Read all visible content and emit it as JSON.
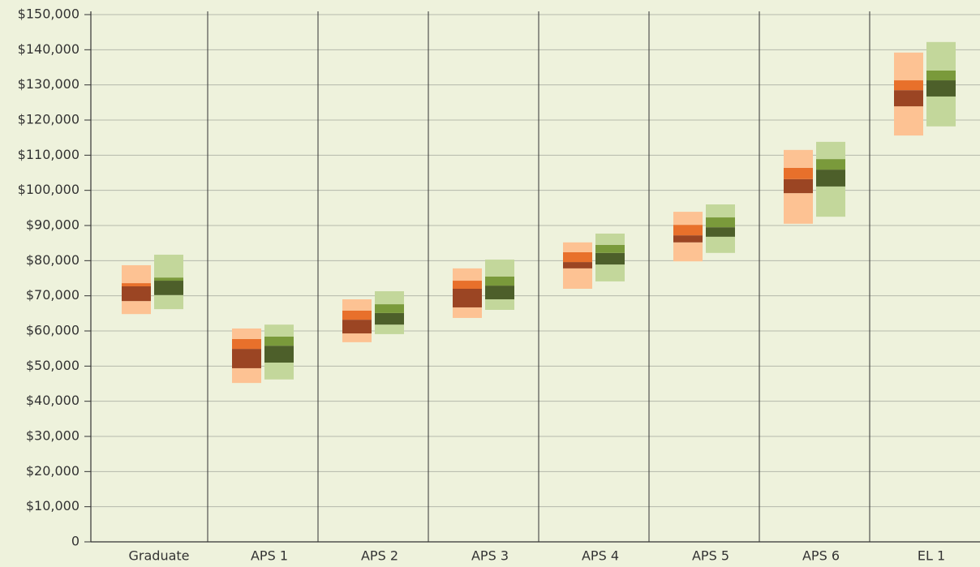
{
  "chart_data": {
    "type": "band",
    "categories": [
      "Graduate",
      "APS 1",
      "APS 2",
      "APS 3",
      "APS 4",
      "APS 5",
      "APS 6",
      "EL 1"
    ],
    "series": [
      {
        "colors": [
          "#fdc293",
          "#9b4523",
          "#e8702b",
          "#fdc293"
        ],
        "p10": [
          64800,
          45200,
          56800,
          63700,
          72000,
          79800,
          90500,
          115600
        ],
        "p25": [
          68500,
          49400,
          59300,
          66700,
          77800,
          85200,
          99200,
          123900
        ],
        "p50": [
          72700,
          54900,
          63200,
          72000,
          79600,
          87200,
          103200,
          128500
        ],
        "p75": [
          73600,
          57700,
          65800,
          74300,
          82400,
          90200,
          106400,
          131300
        ],
        "p90": [
          78700,
          60700,
          69000,
          77800,
          85200,
          93900,
          111500,
          139200
        ]
      },
      {
        "colors": [
          "#c3d79b",
          "#4d5f2a",
          "#7a9a3b",
          "#c3d79b"
        ],
        "p10": [
          66200,
          46200,
          59100,
          66000,
          74100,
          82200,
          92500,
          118200
        ],
        "p25": [
          70200,
          51000,
          61800,
          69000,
          78900,
          86800,
          101100,
          126700
        ],
        "p50": [
          74300,
          55800,
          65100,
          72900,
          82200,
          89500,
          105900,
          131300
        ],
        "p75": [
          75200,
          58400,
          67600,
          75500,
          84500,
          92300,
          108900,
          134100
        ],
        "p90": [
          81700,
          61800,
          71300,
          80300,
          87700,
          96000,
          113800,
          142200
        ]
      }
    ],
    "ylim": [
      0,
      150000
    ],
    "yticks": [
      0,
      {
        "value": 10000,
        "label": "$10,000"
      },
      {
        "value": 20000,
        "label": "$20,000"
      },
      {
        "value": 30000,
        "label": "$30,000"
      },
      {
        "value": 40000,
        "label": "$40,000"
      },
      {
        "value": 50000,
        "label": "$50,000"
      },
      {
        "value": 60000,
        "label": "$60,000"
      },
      {
        "value": 70000,
        "label": "$70,000"
      },
      {
        "value": 80000,
        "label": "$80,000"
      },
      {
        "value": 90000,
        "label": "$90,000"
      },
      {
        "value": 100000,
        "label": "$100,000"
      },
      {
        "value": 110000,
        "label": "$110,000"
      },
      {
        "value": 120000,
        "label": "$120,000"
      },
      {
        "value": 130000,
        "label": "$130,000"
      },
      {
        "value": 140000,
        "label": "$140,000"
      },
      {
        "value": 150000,
        "label": "$150,000"
      }
    ],
    "grid": true
  }
}
